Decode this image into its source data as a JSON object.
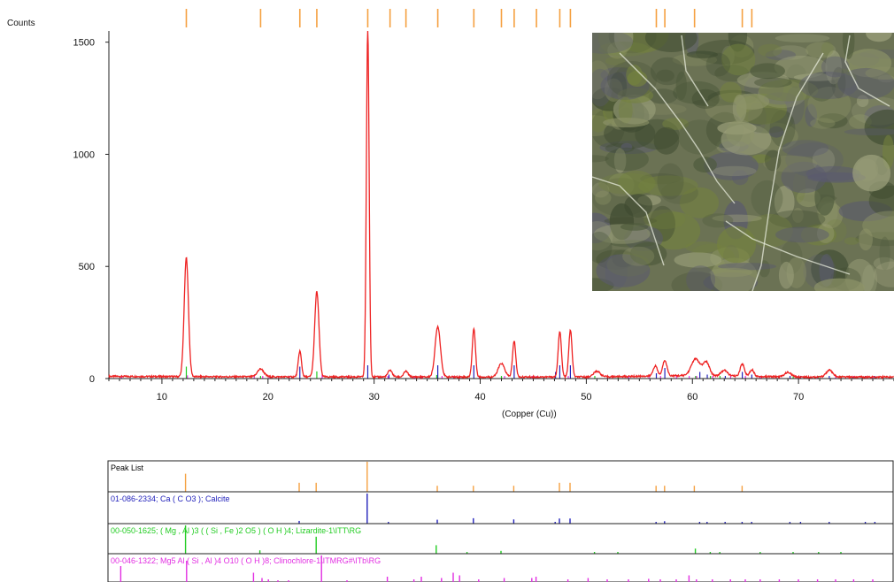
{
  "chart_data": {
    "type": "line",
    "ylabel": "Counts",
    "xlabel": "(Copper (Cu))",
    "xlim": [
      5,
      79
    ],
    "ylim": [
      0,
      1550
    ],
    "x_ticks": [
      10,
      20,
      30,
      40,
      50,
      60,
      70
    ],
    "y_ticks": [
      0,
      500,
      1000,
      1500
    ],
    "grid": false,
    "colors": {
      "observed": "#ee2222",
      "calcite": "#2222bb",
      "lizardite": "#22cc22",
      "clinochlore": "#e22ee2",
      "peak_marker": "#f5a040"
    },
    "peaks": [
      {
        "x": 12.3,
        "y": 530,
        "w": 0.2
      },
      {
        "x": 19.3,
        "y": 35,
        "w": 0.3
      },
      {
        "x": 23.0,
        "y": 115,
        "w": 0.15
      },
      {
        "x": 24.6,
        "y": 380,
        "w": 0.2
      },
      {
        "x": 29.4,
        "y": 1550,
        "w": 0.13
      },
      {
        "x": 31.5,
        "y": 30,
        "w": 0.2
      },
      {
        "x": 33.0,
        "y": 25,
        "w": 0.2
      },
      {
        "x": 36.0,
        "y": 225,
        "w": 0.25
      },
      {
        "x": 39.4,
        "y": 215,
        "w": 0.15
      },
      {
        "x": 42.0,
        "y": 60,
        "w": 0.3
      },
      {
        "x": 43.2,
        "y": 160,
        "w": 0.15
      },
      {
        "x": 47.5,
        "y": 205,
        "w": 0.15
      },
      {
        "x": 48.5,
        "y": 210,
        "w": 0.15
      },
      {
        "x": 51.0,
        "y": 25,
        "w": 0.3
      },
      {
        "x": 56.5,
        "y": 45,
        "w": 0.2
      },
      {
        "x": 57.4,
        "y": 70,
        "w": 0.2
      },
      {
        "x": 60.3,
        "y": 75,
        "w": 0.4
      },
      {
        "x": 61.3,
        "y": 60,
        "w": 0.3
      },
      {
        "x": 63.0,
        "y": 25,
        "w": 0.3
      },
      {
        "x": 64.7,
        "y": 55,
        "w": 0.2
      },
      {
        "x": 65.6,
        "y": 30,
        "w": 0.2
      },
      {
        "x": 69.0,
        "y": 20,
        "w": 0.3
      },
      {
        "x": 72.9,
        "y": 30,
        "w": 0.3
      }
    ],
    "peak_markers": [
      12.3,
      19.3,
      23.0,
      24.6,
      29.4,
      31.5,
      33.0,
      36.0,
      39.4,
      42.0,
      43.2,
      45.3,
      47.5,
      48.5,
      56.6,
      57.4,
      60.2,
      64.7,
      65.6
    ],
    "peak_list": {
      "title": "Peak List",
      "markers": [
        12.3,
        23.0,
        24.6,
        29.4,
        36.0,
        39.4,
        43.2,
        47.5,
        48.5,
        56.6,
        57.4,
        60.2,
        64.7
      ],
      "heights": [
        0.6,
        0.3,
        0.3,
        1.0,
        0.2,
        0.2,
        0.2,
        0.3,
        0.3,
        0.2,
        0.2,
        0.2,
        0.2
      ]
    },
    "reference_patterns": [
      {
        "label": "01-086-2334; Ca ( C O3 ); Calcite",
        "color": "#2222bb",
        "lines": [
          {
            "x": 23.0,
            "h": 0.09
          },
          {
            "x": 29.4,
            "h": 1.0
          },
          {
            "x": 31.4,
            "h": 0.03
          },
          {
            "x": 36.0,
            "h": 0.13
          },
          {
            "x": 39.4,
            "h": 0.18
          },
          {
            "x": 43.2,
            "h": 0.14
          },
          {
            "x": 47.1,
            "h": 0.05
          },
          {
            "x": 47.5,
            "h": 0.17
          },
          {
            "x": 48.5,
            "h": 0.17
          },
          {
            "x": 56.6,
            "h": 0.04
          },
          {
            "x": 57.4,
            "h": 0.08
          },
          {
            "x": 60.7,
            "h": 0.05
          },
          {
            "x": 61.4,
            "h": 0.03
          },
          {
            "x": 63.1,
            "h": 0.02
          },
          {
            "x": 64.7,
            "h": 0.05
          },
          {
            "x": 65.6,
            "h": 0.03
          },
          {
            "x": 69.2,
            "h": 0.02
          },
          {
            "x": 70.2,
            "h": 0.02
          },
          {
            "x": 72.9,
            "h": 0.02
          },
          {
            "x": 76.3,
            "h": 0.02
          },
          {
            "x": 77.2,
            "h": 0.02
          }
        ]
      },
      {
        "label": "00-050-1625; ( Mg , Al )3 ( ( Si , Fe )2 O5 ) ( O H )4; Lizardite-1\\ITT\\RG",
        "color": "#22cc22",
        "lines": [
          {
            "x": 12.3,
            "h": 1.0
          },
          {
            "x": 19.3,
            "h": 0.12
          },
          {
            "x": 24.6,
            "h": 0.6
          },
          {
            "x": 35.9,
            "h": 0.3
          },
          {
            "x": 38.8,
            "h": 0.06
          },
          {
            "x": 42.0,
            "h": 0.1
          },
          {
            "x": 50.8,
            "h": 0.05
          },
          {
            "x": 53.0,
            "h": 0.03
          },
          {
            "x": 60.3,
            "h": 0.18
          },
          {
            "x": 61.7,
            "h": 0.06
          },
          {
            "x": 62.6,
            "h": 0.04
          },
          {
            "x": 66.4,
            "h": 0.03
          },
          {
            "x": 69.5,
            "h": 0.03
          },
          {
            "x": 71.9,
            "h": 0.03
          },
          {
            "x": 74.0,
            "h": 0.03
          }
        ]
      },
      {
        "label": "00-046-1322; Mg5 Al ( Si , Al )4 O10 ( O H )8; Clinochlore-1\\ITMRG#\\ITb\\RG",
        "color": "#e22ee2",
        "lines": [
          {
            "x": 6.2,
            "h": 0.6
          },
          {
            "x": 12.4,
            "h": 0.8
          },
          {
            "x": 18.7,
            "h": 0.35
          },
          {
            "x": 19.5,
            "h": 0.15
          },
          {
            "x": 20.1,
            "h": 0.1
          },
          {
            "x": 21.0,
            "h": 0.05
          },
          {
            "x": 22.0,
            "h": 0.05
          },
          {
            "x": 25.1,
            "h": 1.0
          },
          {
            "x": 27.5,
            "h": 0.05
          },
          {
            "x": 31.3,
            "h": 0.2
          },
          {
            "x": 33.8,
            "h": 0.1
          },
          {
            "x": 34.5,
            "h": 0.2
          },
          {
            "x": 36.4,
            "h": 0.15
          },
          {
            "x": 37.5,
            "h": 0.35
          },
          {
            "x": 38.1,
            "h": 0.25
          },
          {
            "x": 39.9,
            "h": 0.1
          },
          {
            "x": 42.3,
            "h": 0.15
          },
          {
            "x": 44.9,
            "h": 0.15
          },
          {
            "x": 45.3,
            "h": 0.2
          },
          {
            "x": 48.3,
            "h": 0.1
          },
          {
            "x": 50.2,
            "h": 0.15
          },
          {
            "x": 52.0,
            "h": 0.1
          },
          {
            "x": 54.0,
            "h": 0.1
          },
          {
            "x": 55.9,
            "h": 0.12
          },
          {
            "x": 57.0,
            "h": 0.1
          },
          {
            "x": 58.5,
            "h": 0.1
          },
          {
            "x": 59.7,
            "h": 0.25
          },
          {
            "x": 60.4,
            "h": 0.1
          },
          {
            "x": 61.9,
            "h": 0.1
          },
          {
            "x": 63.6,
            "h": 0.1
          },
          {
            "x": 65.0,
            "h": 0.1
          },
          {
            "x": 66.4,
            "h": 0.1
          },
          {
            "x": 68.2,
            "h": 0.1
          },
          {
            "x": 70.0,
            "h": 0.1
          },
          {
            "x": 71.8,
            "h": 0.1
          },
          {
            "x": 73.5,
            "h": 0.1
          },
          {
            "x": 75.2,
            "h": 0.1
          },
          {
            "x": 77.0,
            "h": 0.1
          }
        ]
      }
    ]
  },
  "sample_photo": {
    "alt": "sample-photo",
    "base_color": "#6b7254",
    "patch_colors": [
      "#8e9468",
      "#4e5a3c",
      "#5a5a6e",
      "#3e4a30",
      "#9fa37e",
      "#74823e"
    ],
    "vein_color": "#e8ecdc"
  }
}
